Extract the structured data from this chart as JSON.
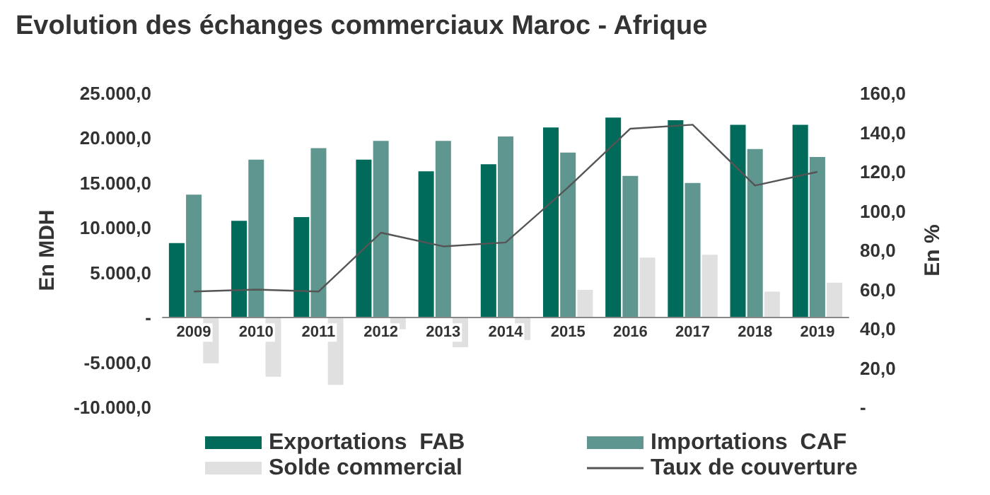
{
  "chart_data": {
    "type": "bar",
    "title": "Evolution des échanges commerciaux Maroc - Afrique",
    "ylabel": "En MDH",
    "y2label": "En %",
    "categories": [
      "2009",
      "2010",
      "2011",
      "2012",
      "2013",
      "2014",
      "2015",
      "2016",
      "2017",
      "2018",
      "2019"
    ],
    "series": [
      {
        "name": "Exportations  FAB",
        "color": "#006b5a",
        "values": [
          8300,
          10800,
          11200,
          17600,
          16300,
          17100,
          21200,
          22300,
          22000,
          21500,
          21500
        ]
      },
      {
        "name": "Importations  CAF",
        "color": "#5f9690",
        "values": [
          13700,
          17600,
          18900,
          19700,
          19700,
          20200,
          18400,
          15800,
          15000,
          18800,
          17900
        ]
      },
      {
        "name": "Solde commercial",
        "color": "#e0e0e0",
        "values": [
          -5100,
          -6600,
          -7500,
          -1300,
          -3300,
          -2500,
          3100,
          6700,
          7000,
          2900,
          3900
        ]
      },
      {
        "name": "Taux de couverture",
        "type": "line",
        "axis": "y2",
        "color": "#555555",
        "values": [
          59,
          60,
          59,
          89,
          82,
          84,
          112,
          142,
          144,
          113,
          120
        ]
      }
    ],
    "ylim": [
      -10000,
      25000
    ],
    "yticks": [
      {
        "value": -10000,
        "label": "-10.000,0"
      },
      {
        "value": -5000,
        "label": "-5.000,0"
      },
      {
        "value": 0,
        "label": "-"
      },
      {
        "value": 5000,
        "label": "5.000,0"
      },
      {
        "value": 10000,
        "label": "10.000,0"
      },
      {
        "value": 15000,
        "label": "15.000,0"
      },
      {
        "value": 20000,
        "label": "20.000,0"
      },
      {
        "value": 25000,
        "label": "25.000,0"
      }
    ],
    "y2lim": [
      0,
      160
    ],
    "y2ticks": [
      {
        "value": 0,
        "label": "-"
      },
      {
        "value": 20,
        "label": "20,0"
      },
      {
        "value": 40,
        "label": "40,0"
      },
      {
        "value": 60,
        "label": "60,0"
      },
      {
        "value": 80,
        "label": "80,0"
      },
      {
        "value": 100,
        "label": "100,0"
      },
      {
        "value": 120,
        "label": "120,0"
      },
      {
        "value": 140,
        "label": "140,0"
      },
      {
        "value": 160,
        "label": "160,0"
      }
    ],
    "grid": false,
    "legend": "bottom",
    "marker": "none",
    "line_style": "solid"
  }
}
